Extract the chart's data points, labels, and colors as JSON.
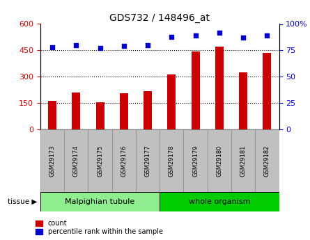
{
  "title": "GDS732 / 148496_at",
  "samples": [
    "GSM29173",
    "GSM29174",
    "GSM29175",
    "GSM29176",
    "GSM29177",
    "GSM29178",
    "GSM29179",
    "GSM29180",
    "GSM29181",
    "GSM29182"
  ],
  "counts": [
    163,
    210,
    155,
    208,
    220,
    315,
    445,
    470,
    325,
    435
  ],
  "percentile_ranks": [
    78,
    80,
    77,
    79,
    80,
    88,
    89,
    92,
    87,
    89
  ],
  "ylim_left": [
    0,
    600
  ],
  "ylim_right": [
    0,
    100
  ],
  "yticks_left": [
    0,
    150,
    300,
    450,
    600
  ],
  "yticks_right": [
    0,
    25,
    50,
    75,
    100
  ],
  "bar_color": "#CC0000",
  "dot_color": "#0000CC",
  "bg_color": "#FFFFFF",
  "tissue_groups": [
    {
      "label": "Malpighian tubule",
      "start": 0,
      "end": 5,
      "color": "#90EE90"
    },
    {
      "label": "whole organism",
      "start": 5,
      "end": 10,
      "color": "#00CC00"
    }
  ],
  "legend_count_label": "count",
  "legend_pct_label": "percentile rank within the sample",
  "tissue_label": "tissue",
  "sample_box_color": "#C0C0C0",
  "sample_box_edge": "#888888"
}
